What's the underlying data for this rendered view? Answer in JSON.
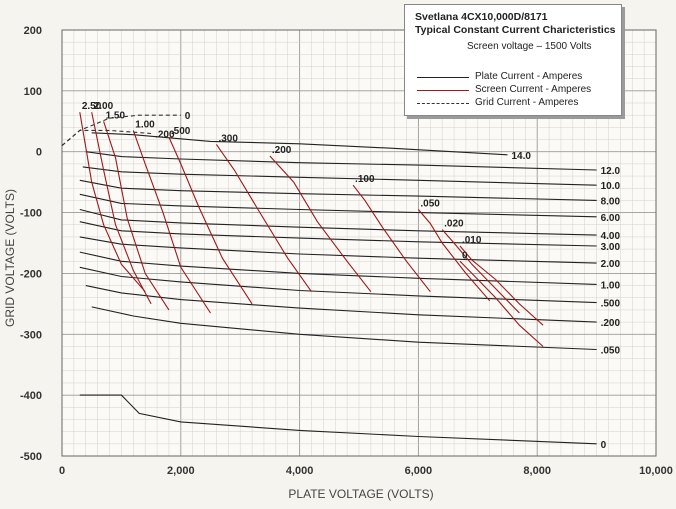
{
  "chart_data": {
    "type": "line",
    "title": "Svetlana 4CX10,000D/8171",
    "subtitle": "Typical Constant Current Charicteristics",
    "note": "Screen voltage – 1500 Volts",
    "xlabel": "PLATE VOLTAGE (VOLTS)",
    "ylabel": "GRID VOLTAGE (VOLTS)",
    "xlim": [
      0,
      10000
    ],
    "ylim": [
      -500,
      200
    ],
    "x_ticks": [
      0,
      2000,
      4000,
      6000,
      8000,
      10000
    ],
    "x_tick_labels": [
      "0",
      "2,000",
      "4,000",
      "6,000",
      "8,000",
      "10,000"
    ],
    "y_ticks": [
      200,
      100,
      0,
      -100,
      -200,
      -300,
      -400,
      -500
    ],
    "y_tick_labels": [
      "200",
      "100",
      "0",
      "-100",
      "-200",
      "-300",
      "-400",
      "-500"
    ],
    "grid": true,
    "legend": {
      "placement": "top-right",
      "entries": [
        {
          "name": "Plate Current - Amperes",
          "color": "#222222",
          "style": "solid"
        },
        {
          "name": "Screen Current - Amperes",
          "color": "#a01818",
          "style": "solid"
        },
        {
          "name": "Grid Current - Amperes",
          "color": "#333333",
          "style": "dashed"
        }
      ]
    },
    "plate_current_series": [
      {
        "label": "14.0",
        "points": [
          [
            500,
            31
          ],
          [
            1200,
            28
          ],
          [
            2500,
            17
          ],
          [
            4000,
            13
          ],
          [
            5500,
            6
          ],
          [
            7500,
            -5
          ]
        ]
      },
      {
        "label": "12.0",
        "points": [
          [
            400,
            0
          ],
          [
            1000,
            -8
          ],
          [
            2000,
            -12
          ],
          [
            4000,
            -18
          ],
          [
            6000,
            -22
          ],
          [
            9000,
            -30
          ]
        ]
      },
      {
        "label": "10.0",
        "points": [
          [
            350,
            -25
          ],
          [
            1000,
            -33
          ],
          [
            2000,
            -37
          ],
          [
            4000,
            -42
          ],
          [
            6000,
            -47
          ],
          [
            9000,
            -55
          ]
        ]
      },
      {
        "label": "8.00",
        "points": [
          [
            300,
            -47
          ],
          [
            1000,
            -60
          ],
          [
            2000,
            -64
          ],
          [
            4000,
            -69
          ],
          [
            6000,
            -73
          ],
          [
            9000,
            -80
          ]
        ]
      },
      {
        "label": "6.00",
        "points": [
          [
            300,
            -70
          ],
          [
            1000,
            -85
          ],
          [
            2000,
            -89
          ],
          [
            4000,
            -95
          ],
          [
            6000,
            -100
          ],
          [
            9000,
            -107
          ]
        ]
      },
      {
        "label": "4.00",
        "points": [
          [
            300,
            -95
          ],
          [
            1000,
            -112
          ],
          [
            2000,
            -117
          ],
          [
            4000,
            -124
          ],
          [
            6000,
            -130
          ],
          [
            9000,
            -137
          ]
        ]
      },
      {
        "label": "3.00",
        "points": [
          [
            300,
            -115
          ],
          [
            1000,
            -130
          ],
          [
            2000,
            -135
          ],
          [
            4000,
            -142
          ],
          [
            6000,
            -148
          ],
          [
            9000,
            -155
          ]
        ]
      },
      {
        "label": "2.00",
        "points": [
          [
            300,
            -140
          ],
          [
            1000,
            -152
          ],
          [
            2000,
            -158
          ],
          [
            4000,
            -168
          ],
          [
            6000,
            -175
          ],
          [
            9000,
            -183
          ]
        ]
      },
      {
        "label": "1.00",
        "points": [
          [
            300,
            -165
          ],
          [
            1000,
            -180
          ],
          [
            2000,
            -188
          ],
          [
            4000,
            -200
          ],
          [
            6000,
            -208
          ],
          [
            9000,
            -218
          ]
        ]
      },
      {
        "label": ".500",
        "points": [
          [
            300,
            -190
          ],
          [
            1000,
            -205
          ],
          [
            2000,
            -214
          ],
          [
            4000,
            -228
          ],
          [
            6000,
            -237
          ],
          [
            9000,
            -248
          ]
        ]
      },
      {
        "label": ".200",
        "points": [
          [
            400,
            -220
          ],
          [
            1000,
            -232
          ],
          [
            2000,
            -243
          ],
          [
            4000,
            -257
          ],
          [
            6000,
            -268
          ],
          [
            9000,
            -280
          ]
        ]
      },
      {
        "label": ".050",
        "points": [
          [
            500,
            -255
          ],
          [
            1200,
            -270
          ],
          [
            2000,
            -282
          ],
          [
            4000,
            -300
          ],
          [
            6000,
            -313
          ],
          [
            9000,
            -325
          ]
        ]
      },
      {
        "label": "0",
        "points": [
          [
            300,
            -400
          ],
          [
            1000,
            -400
          ],
          [
            1300,
            -430
          ],
          [
            2000,
            -444
          ],
          [
            4000,
            -458
          ],
          [
            6000,
            -468
          ],
          [
            9000,
            -480
          ]
        ]
      }
    ],
    "screen_current_series": [
      {
        "label": "2.50",
        "points": [
          [
            300,
            65
          ],
          [
            500,
            -50
          ],
          [
            700,
            -120
          ],
          [
            1000,
            -185
          ],
          [
            1400,
            -230
          ]
        ]
      },
      {
        "label": "2.00",
        "points": [
          [
            500,
            65
          ],
          [
            700,
            -30
          ],
          [
            900,
            -120
          ],
          [
            1200,
            -195
          ],
          [
            1500,
            -250
          ]
        ]
      },
      {
        "label": "1.50",
        "points": [
          [
            700,
            50
          ],
          [
            900,
            -10
          ],
          [
            1100,
            -110
          ],
          [
            1400,
            -200
          ],
          [
            1800,
            -260
          ]
        ]
      },
      {
        "label": "1.00",
        "points": [
          [
            1200,
            35
          ],
          [
            1400,
            -20
          ],
          [
            1700,
            -100
          ],
          [
            2000,
            -190
          ],
          [
            2500,
            -265
          ]
        ]
      },
      {
        "label": ".500",
        "points": [
          [
            1800,
            24
          ],
          [
            2000,
            -20
          ],
          [
            2300,
            -90
          ],
          [
            2700,
            -175
          ],
          [
            3200,
            -250
          ]
        ]
      },
      {
        "label": ".300",
        "points": [
          [
            2600,
            12
          ],
          [
            2900,
            -30
          ],
          [
            3300,
            -95
          ],
          [
            3800,
            -175
          ],
          [
            4200,
            -230
          ]
        ]
      },
      {
        "label": ".200",
        "points": [
          [
            3500,
            -7
          ],
          [
            3900,
            -50
          ],
          [
            4300,
            -115
          ],
          [
            4800,
            -180
          ],
          [
            5200,
            -230
          ]
        ]
      },
      {
        "label": ".100",
        "points": [
          [
            4900,
            -55
          ],
          [
            5100,
            -80
          ],
          [
            5400,
            -125
          ],
          [
            5800,
            -180
          ],
          [
            6200,
            -230
          ]
        ]
      },
      {
        "label": ".050",
        "points": [
          [
            6000,
            -95
          ],
          [
            6200,
            -118
          ],
          [
            6400,
            -150
          ],
          [
            6800,
            -200
          ],
          [
            7200,
            -245
          ]
        ]
      },
      {
        "label": ".020",
        "points": [
          [
            6400,
            -128
          ],
          [
            6600,
            -150
          ],
          [
            6900,
            -185
          ],
          [
            7300,
            -225
          ],
          [
            7700,
            -265
          ]
        ]
      },
      {
        "label": ".010",
        "points": [
          [
            6700,
            -155
          ],
          [
            6900,
            -178
          ],
          [
            7300,
            -210
          ],
          [
            7700,
            -250
          ],
          [
            8100,
            -285
          ]
        ]
      },
      {
        "label": "0",
        "points": [
          [
            6700,
            -180
          ],
          [
            6900,
            -200
          ],
          [
            7300,
            -240
          ],
          [
            7700,
            -285
          ],
          [
            8100,
            -320
          ]
        ]
      }
    ],
    "grid_current_series": [
      {
        "label": "0",
        "points": [
          [
            0,
            10
          ],
          [
            300,
            35
          ],
          [
            800,
            55
          ],
          [
            1300,
            60
          ],
          [
            2000,
            60
          ]
        ]
      },
      {
        "label": ".200",
        "points": [
          [
            0,
            10
          ],
          [
            300,
            35
          ],
          [
            800,
            35
          ],
          [
            1500,
            30
          ]
        ]
      }
    ]
  }
}
